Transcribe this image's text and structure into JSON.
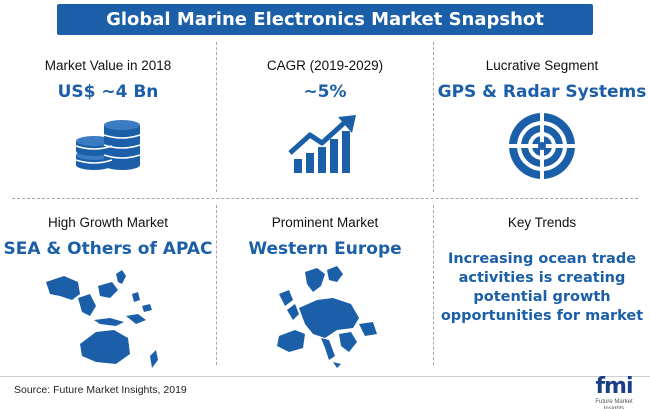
{
  "title": "Global Marine Electronics Market Snapshot",
  "colors": {
    "primary": "#1b5fa8",
    "banner_text": "#ffffff",
    "divider": "#a7a7a7"
  },
  "cells": {
    "market_value": {
      "label": "Market Value in 2018",
      "value": "US$ ~4 Bn",
      "icon": "coin-stack-icon"
    },
    "cagr": {
      "label": "CAGR (2019-2029)",
      "value": "~5%",
      "icon": "growth-chart-icon"
    },
    "lucrative_segment": {
      "label": "Lucrative Segment",
      "value": "GPS & Radar Systems",
      "icon": "radar-target-icon"
    },
    "high_growth": {
      "label": "High Growth Market",
      "value": "SEA & Others of APAC",
      "icon": "apac-map-icon"
    },
    "prominent": {
      "label": "Prominent Market",
      "value": "Western Europe",
      "icon": "europe-map-icon"
    },
    "key_trends": {
      "label": "Key Trends",
      "text": "Increasing ocean trade activities is creating potential growth opportunities for market"
    }
  },
  "footer": {
    "source": "Source: Future Market Insights, 2019",
    "logo_text": "fmi",
    "logo_sub": "Future Market Insights"
  }
}
